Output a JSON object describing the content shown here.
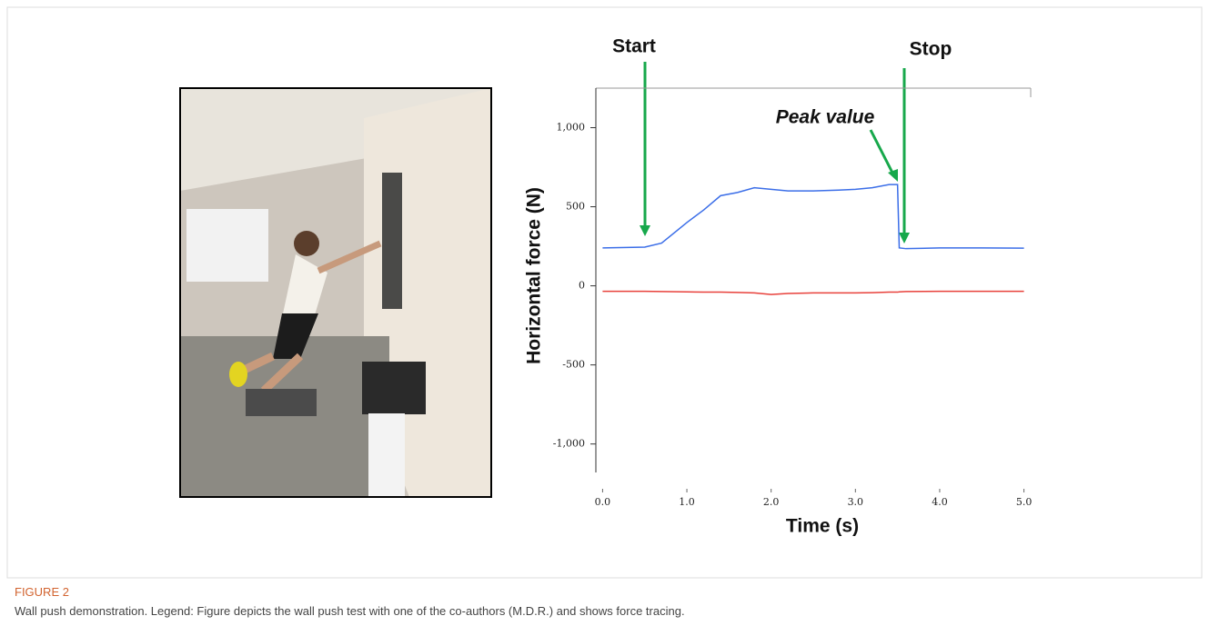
{
  "figure": {
    "label": "FIGURE 2",
    "caption": "Wall push demonstration. Legend: Figure depicts the wall push test with one of the co-authors (M.D.R.) and shows force tracing."
  },
  "chart_data": {
    "type": "line",
    "xlabel": "Time (s)",
    "ylabel": "Horizontal force (N)",
    "annotations": [
      "Start",
      "Stop",
      "Peak value"
    ],
    "x": [
      0,
      0.5,
      0.7,
      1.0,
      1.2,
      1.4,
      1.6,
      1.8,
      2.0,
      2.2,
      2.5,
      2.8,
      3.0,
      3.2,
      3.4,
      3.5,
      3.52,
      3.6,
      4.0,
      4.5,
      5.0
    ],
    "series": [
      {
        "color": "#3b6ee8",
        "values": [
          240,
          245,
          270,
          400,
          480,
          570,
          590,
          620,
          610,
          600,
          600,
          605,
          610,
          620,
          640,
          640,
          240,
          235,
          240,
          240,
          238
        ]
      },
      {
        "color": "#e8413b",
        "values": [
          -35,
          -35,
          -36,
          -38,
          -40,
          -40,
          -42,
          -45,
          -55,
          -48,
          -45,
          -45,
          -45,
          -43,
          -40,
          -40,
          -38,
          -36,
          -35,
          -35,
          -35
        ]
      }
    ],
    "xlim": [
      -0.08,
      5.08
    ],
    "ylim": [
      -1180,
      1250
    ],
    "xticks": [
      {
        "value": 0,
        "label": "0.0"
      },
      {
        "value": 1,
        "label": "1.0"
      },
      {
        "value": 2,
        "label": "2.0"
      },
      {
        "value": 3,
        "label": "3.0"
      },
      {
        "value": 4,
        "label": "4.0"
      },
      {
        "value": 5,
        "label": "5.0"
      }
    ],
    "yticks": [
      {
        "value": -1000,
        "label": "-1,000"
      },
      -500,
      0,
      500,
      {
        "value": 1000,
        "label": "1,000"
      }
    ]
  }
}
